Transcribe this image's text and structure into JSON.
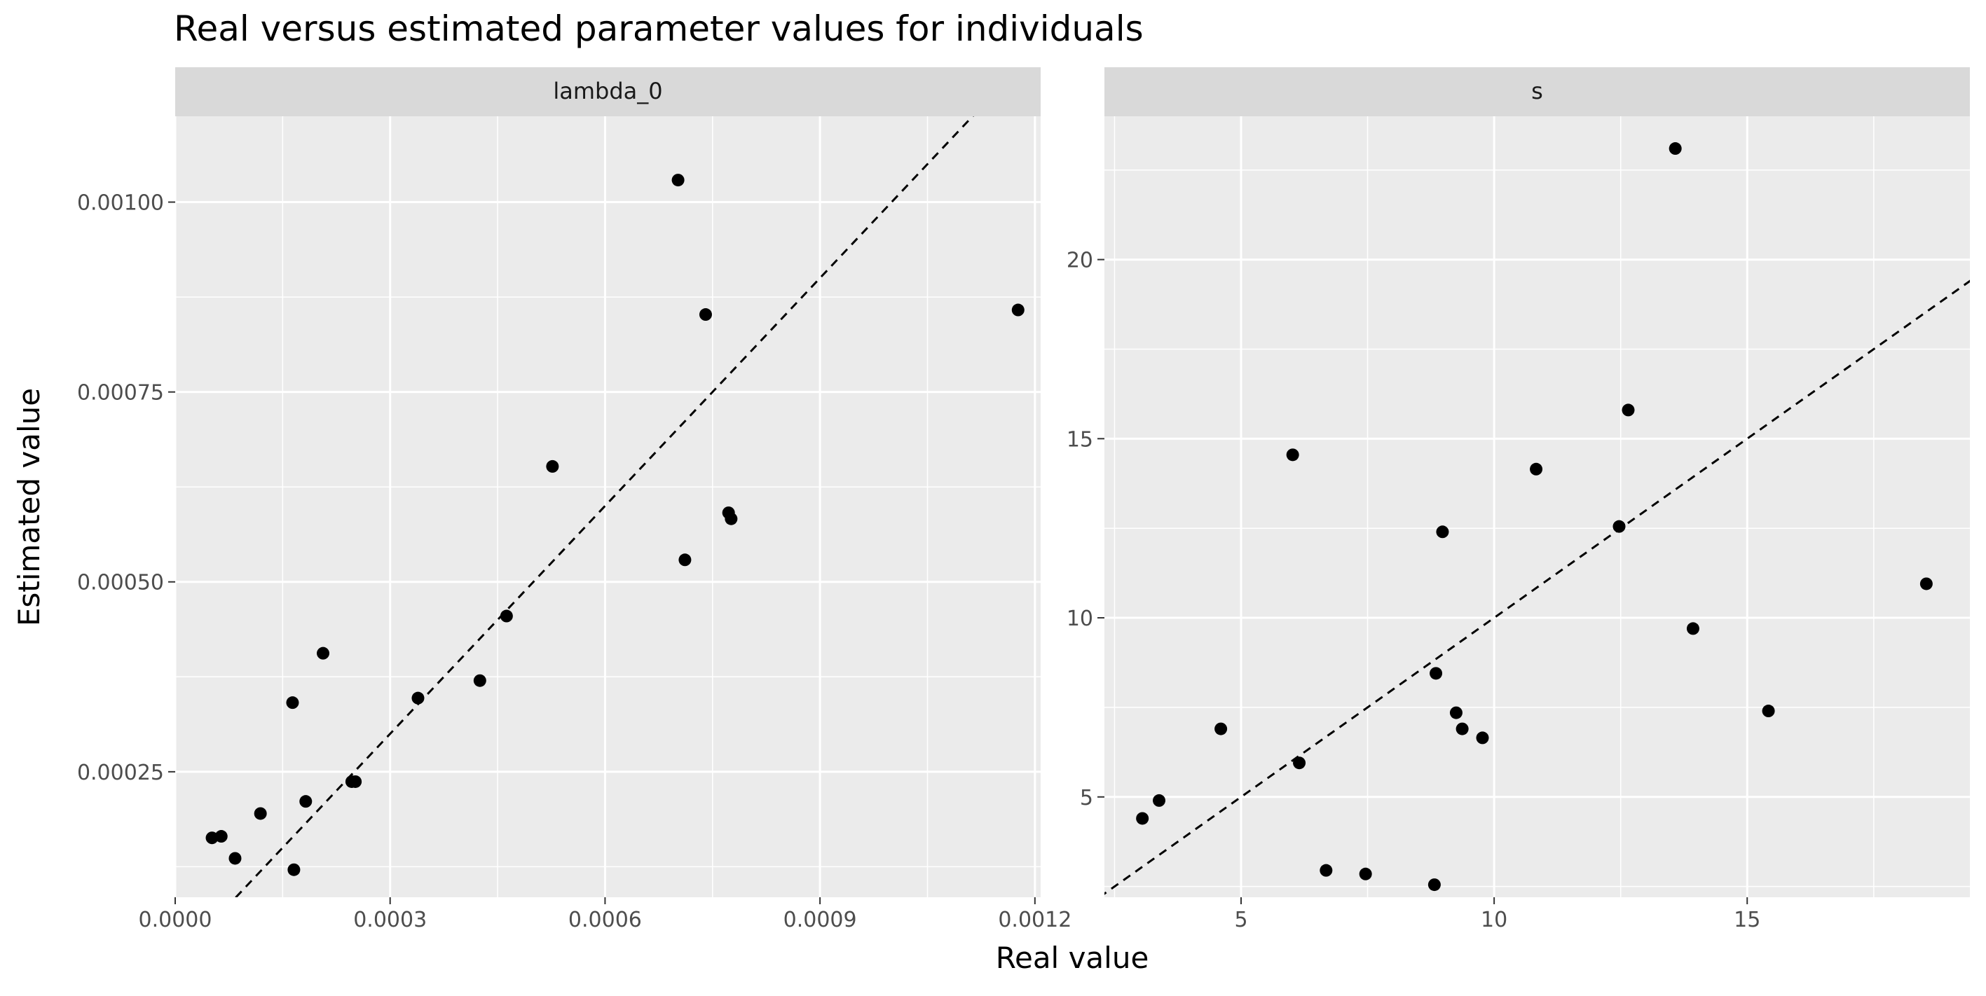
{
  "title": "Real versus estimated parameter values for individuals",
  "xlabel": "Real value",
  "ylabel": "Estimated value",
  "colors": {
    "panel_bg": "#EBEBEB",
    "strip_bg": "#D9D9D9",
    "grid_major": "#FFFFFF",
    "point": "#000000",
    "text": "#1A1A1A",
    "tick_text": "#4D4D4D"
  },
  "chart_data": [
    {
      "type": "scatter",
      "panel": "lambda_0",
      "xlim": [
        0.0,
        0.001208
      ],
      "ylim": [
        8.48e-05,
        0.001113
      ],
      "x_ticks": [
        0.0,
        0.0003,
        0.0006,
        0.0009,
        0.0012
      ],
      "x_tick_labels": [
        "0.0000",
        "0.0003",
        "0.0006",
        "0.0009",
        "0.0012"
      ],
      "y_ticks": [
        0.00025,
        0.0005,
        0.00075,
        0.001
      ],
      "y_tick_labels": [
        "0.00025",
        "0.00050",
        "0.00075",
        "0.00100"
      ],
      "reference_line": "y = x (dashed)",
      "x": [
        5.14e-05,
        6.43e-05,
        8.36e-05,
        0.000119,
        0.0001638,
        0.0001657,
        0.0001822,
        0.0002064,
        0.0002464,
        0.0002515,
        0.0003389,
        0.0004253,
        0.0004625,
        0.0005266,
        0.0007019,
        0.0007115,
        0.0007404,
        0.0007724,
        0.000776,
        0.0011765
      ],
      "y": [
        0.000163,
        0.000165,
        0.000136,
        0.000195,
        0.000341,
        0.000121,
        0.000211,
        0.000406,
        0.000237,
        0.000237,
        0.000347,
        0.00037,
        0.000455,
        0.000652,
        0.001029,
        0.000529,
        0.000852,
        0.000591,
        0.000583,
        0.000858
      ]
    },
    {
      "type": "scatter",
      "panel": "s",
      "xlim": [
        2.3,
        19.4
      ],
      "ylim": [
        2.2,
        24.0
      ],
      "x_ticks": [
        5,
        10,
        15
      ],
      "x_tick_labels": [
        "5",
        "10",
        "15"
      ],
      "y_ticks": [
        5,
        10,
        15,
        20
      ],
      "y_tick_labels": [
        "5",
        "10",
        "15",
        "20"
      ],
      "reference_line": "y = x (dashed)",
      "x": [
        3.05,
        3.38,
        4.6,
        6.02,
        6.15,
        6.68,
        7.46,
        8.82,
        8.85,
        8.98,
        9.25,
        9.37,
        9.77,
        10.83,
        12.47,
        12.65,
        13.58,
        13.93,
        15.42,
        18.54
      ],
      "y": [
        4.4,
        4.9,
        6.9,
        14.55,
        5.95,
        2.95,
        2.85,
        2.55,
        8.45,
        12.4,
        7.35,
        6.9,
        6.65,
        14.15,
        12.55,
        15.8,
        23.1,
        9.7,
        7.4,
        10.95
      ]
    }
  ]
}
